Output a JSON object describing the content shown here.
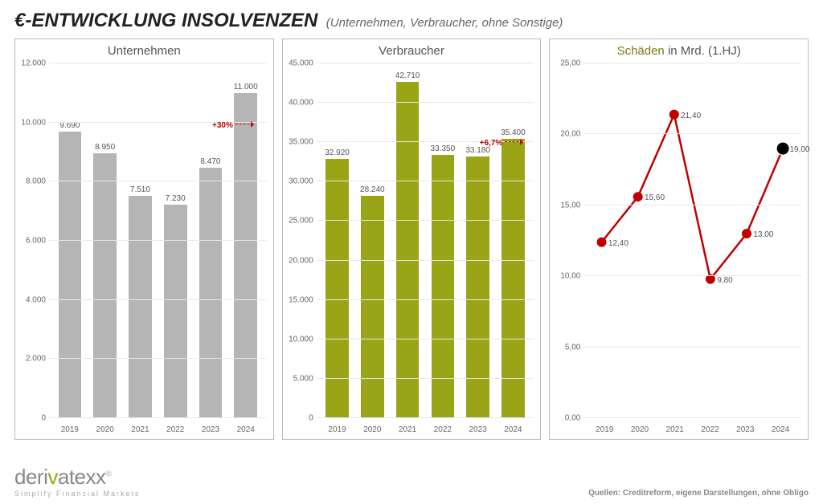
{
  "header": {
    "title": "€-ENTWICKLUNG INSOLVENZEN",
    "subtitle": "(Unternehmen, Verbraucher, ohne Sonstige)"
  },
  "chart1": {
    "type": "bar",
    "title": "Unternehmen",
    "categories": [
      "2019",
      "2020",
      "2021",
      "2022",
      "2023",
      "2024"
    ],
    "values": [
      9690,
      8950,
      7510,
      7230,
      8470,
      11000
    ],
    "value_labels": [
      "9.690",
      "8.950",
      "7.510",
      "7.230",
      "8.470",
      "11.000"
    ],
    "bar_color": "#b5b5b5",
    "ylim": [
      0,
      12000
    ],
    "ytick_step": 2000,
    "ytick_labels": [
      "0",
      "2.000",
      "4.000",
      "6.000",
      "8.000",
      "10.000",
      "12.000"
    ],
    "annotation": {
      "text": "+30%",
      "from_index": 4,
      "to_index": 5,
      "color": "#c00000"
    },
    "grid_color": "#e8e8e8",
    "tick_fontsize": 10,
    "label_fontsize": 10
  },
  "chart2": {
    "type": "bar",
    "title": "Verbraucher",
    "categories": [
      "2019",
      "2020",
      "2021",
      "2022",
      "2023",
      "2024"
    ],
    "values": [
      32920,
      28240,
      42710,
      33350,
      33180,
      35400
    ],
    "value_labels": [
      "32.920",
      "28.240",
      "42.710",
      "33.350",
      "33.180",
      "35.400"
    ],
    "bar_color": "#99a516",
    "ylim": [
      0,
      45000
    ],
    "ytick_step": 5000,
    "ytick_labels": [
      "0",
      "5.000",
      "10.000",
      "15.000",
      "20.000",
      "25.000",
      "30.000",
      "35.000",
      "40.000",
      "45.000"
    ],
    "annotation": {
      "text": "+6,7%",
      "from_index": 4,
      "to_index": 5,
      "color": "#c00000"
    },
    "grid_color": "#e8e8e8",
    "tick_fontsize": 10,
    "label_fontsize": 10
  },
  "chart3": {
    "type": "line",
    "title_prefix": "Schäden",
    "title_suffix": " in Mrd. (1.HJ)",
    "categories": [
      "2019",
      "2020",
      "2021",
      "2022",
      "2023",
      "2024"
    ],
    "values": [
      12.4,
      15.6,
      21.4,
      9.8,
      13.0,
      19.0
    ],
    "value_labels": [
      "12,40",
      "15,60",
      "21,40",
      "9,80",
      "13,00",
      "19,00"
    ],
    "line_color": "#c00000",
    "marker_color": "#c00000",
    "last_marker_color": "#000000",
    "marker_radius": 6,
    "line_width": 2.5,
    "ylim": [
      0,
      25
    ],
    "ytick_step": 5,
    "ytick_labels": [
      "0,00",
      "5,00",
      "10,00",
      "15,00",
      "20,00",
      "25,00"
    ],
    "grid_color": "#e8e8e8",
    "tick_fontsize": 10,
    "label_fontsize": 10
  },
  "footer": {
    "logo_pre": "deri",
    "logo_accent": "v",
    "logo_post": "atexx",
    "logo_tm": "®",
    "logo_tagline": "Simplify Financial Markets",
    "source": "Quellen: Creditreform, eigene Darstellungen, ohne Obligo"
  },
  "colors": {
    "page_bg": "#ffffff",
    "border": "#bbbbbb",
    "text": "#555555",
    "accent_olive": "#99a516",
    "accent_red": "#c00000"
  }
}
